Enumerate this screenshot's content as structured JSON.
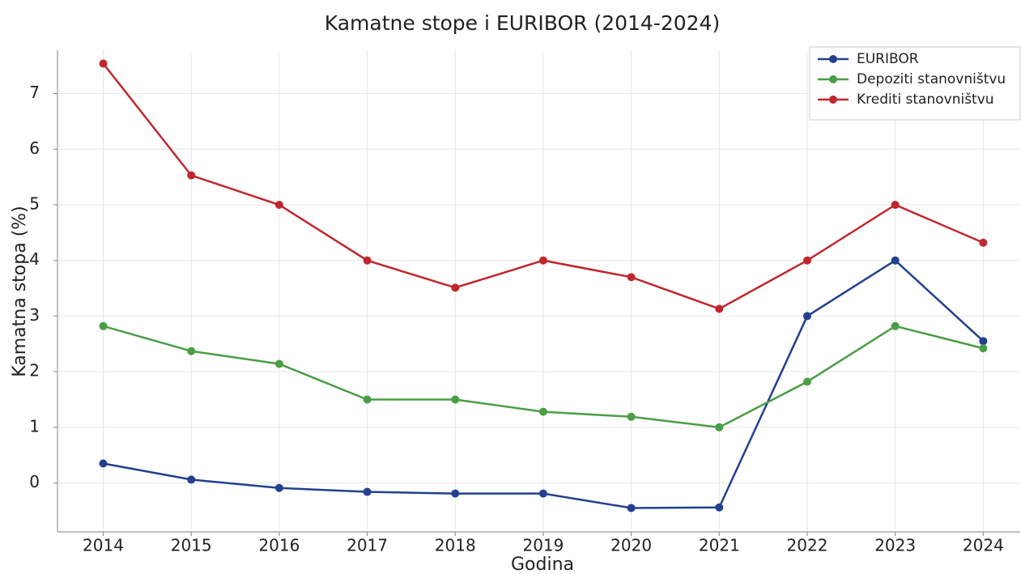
{
  "chart_data": {
    "type": "line",
    "title": "Kamatne stope i EURIBOR (2014-2024)",
    "xlabel": "Godina",
    "ylabel": "Kamatna stopa (%)",
    "x": [
      2014,
      2015,
      2016,
      2017,
      2018,
      2019,
      2020,
      2021,
      2022,
      2023,
      2024
    ],
    "series": [
      {
        "name": "EURIBOR",
        "color": "#23408e",
        "values": [
          0.35,
          0.06,
          -0.09,
          -0.16,
          -0.19,
          -0.19,
          -0.45,
          -0.44,
          3.0,
          4.0,
          2.55
        ]
      },
      {
        "name": "Depoziti stanovništvu",
        "color": "#4a9e45",
        "values": [
          2.82,
          2.37,
          2.14,
          1.5,
          1.5,
          1.28,
          1.19,
          1.0,
          1.82,
          2.82,
          2.42
        ]
      },
      {
        "name": "Krediti stanovništvu",
        "color": "#c0272d",
        "values": [
          7.54,
          5.53,
          5.0,
          4.0,
          3.51,
          4.0,
          3.7,
          3.13,
          4.0,
          5.0,
          4.32
        ]
      }
    ],
    "xlim": [
      2013.48,
      2024.42
    ],
    "xticks": [
      2014,
      2015,
      2016,
      2017,
      2018,
      2019,
      2020,
      2021,
      2022,
      2023,
      2024
    ],
    "ylim": [
      -0.88,
      7.78
    ],
    "yticks": [
      0,
      1,
      2,
      3,
      4,
      5,
      6,
      7
    ],
    "grid": true,
    "legend": "upper right"
  }
}
